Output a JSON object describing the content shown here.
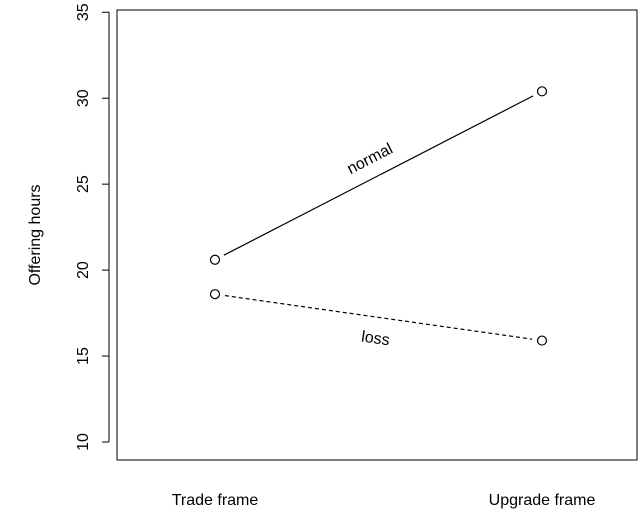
{
  "chart_data": {
    "type": "line",
    "ylabel": "Offering hours",
    "xlabel": "",
    "categories": [
      "Trade frame",
      "Upgrade frame"
    ],
    "ylim": [
      10,
      35
    ],
    "yticks": [
      10,
      15,
      20,
      25,
      30,
      35
    ],
    "grid": false,
    "series": [
      {
        "name": "normal",
        "values": [
          20.6,
          30.4
        ],
        "line_style": "solid",
        "marker": "open-circle",
        "color": "#000000"
      },
      {
        "name": "loss",
        "values": [
          18.6,
          15.9
        ],
        "line_style": "dashed",
        "marker": "open-circle",
        "color": "#000000"
      }
    ]
  }
}
